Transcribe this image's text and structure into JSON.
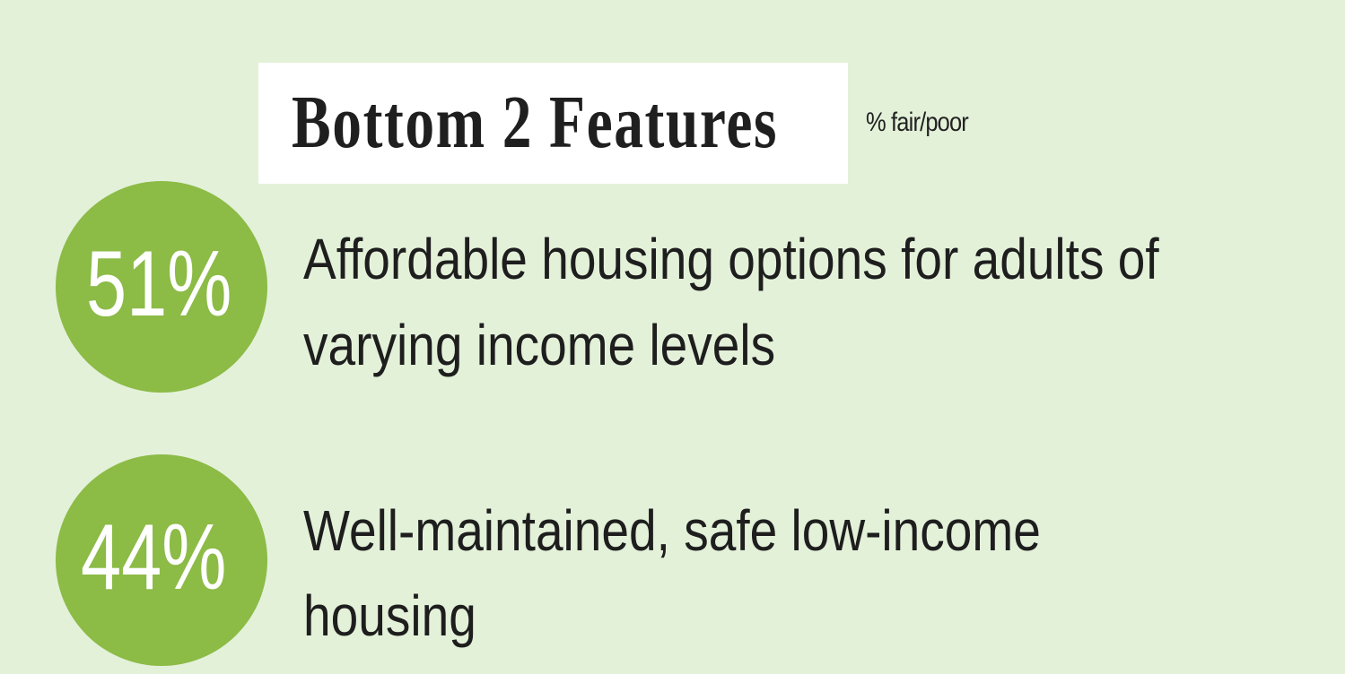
{
  "header": {
    "title": "Bottom 2 Features",
    "subtitle": "% fair/poor"
  },
  "items": [
    {
      "percent": "51%",
      "lines": [
        "Affordable housing options for adults of",
        "varying income levels"
      ]
    },
    {
      "percent": "44%",
      "lines": [
        "Well-maintained, safe low-income",
        "housing"
      ]
    }
  ]
}
